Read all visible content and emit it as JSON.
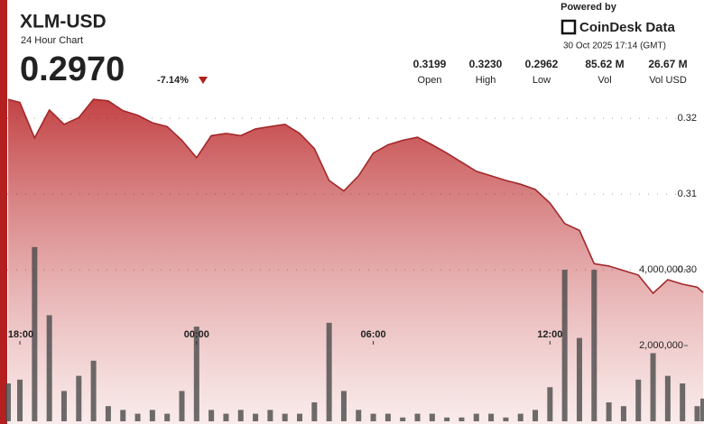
{
  "header": {
    "symbol": "XLM-USD",
    "subtitle": "24 Hour Chart",
    "price": "0.2970",
    "change": "-7.14%",
    "stats": [
      {
        "value": "0.3199",
        "label": "Open"
      },
      {
        "value": "0.3230",
        "label": "High"
      },
      {
        "value": "0.2962",
        "label": "Low"
      },
      {
        "value": "85.62 M",
        "label": "Vol"
      },
      {
        "value": "26.67 M",
        "label": "Vol USD"
      }
    ],
    "powered_by": "Powered by",
    "brand": "CoinDesk Data",
    "timestamp": "30 Oct 2025 17:14 (GMT)"
  },
  "chart_data": {
    "type": "line",
    "x": [
      17.6,
      18.0,
      18.5,
      19.0,
      19.5,
      20.0,
      20.5,
      21.0,
      21.5,
      22.0,
      22.5,
      23.0,
      23.5,
      24.0,
      24.5,
      25.0,
      25.5,
      26.0,
      26.5,
      27.0,
      27.5,
      28.0,
      28.5,
      29.0,
      29.5,
      30.0,
      30.5,
      31.0,
      31.5,
      32.0,
      32.5,
      33.0,
      33.5,
      34.0,
      34.5,
      35.0,
      35.5,
      36.0,
      36.5,
      37.0,
      37.5,
      38.0,
      38.5,
      39.0,
      39.5,
      40.0,
      40.5,
      41.0,
      41.2
    ],
    "series": [
      {
        "name": "Price",
        "color": "#a3282a",
        "values": [
          0.3225,
          0.3221,
          0.3174,
          0.3211,
          0.3192,
          0.3201,
          0.3225,
          0.3223,
          0.321,
          0.3204,
          0.3194,
          0.3189,
          0.3171,
          0.3148,
          0.3177,
          0.318,
          0.3177,
          0.3186,
          0.3189,
          0.3192,
          0.318,
          0.316,
          0.3118,
          0.3104,
          0.3124,
          0.3154,
          0.3165,
          0.3171,
          0.3175,
          0.3165,
          0.3154,
          0.3142,
          0.313,
          0.3124,
          0.3118,
          0.3113,
          0.3106,
          0.3088,
          0.3061,
          0.3052,
          0.3008,
          0.3005,
          0.2999,
          0.2993,
          0.2969,
          0.2987,
          0.2981,
          0.2977,
          0.297
        ]
      },
      {
        "name": "Volume",
        "type": "bar",
        "axis": "y2",
        "color": "#4a4a4a",
        "values": [
          1000000,
          1100000,
          4600000,
          2800000,
          800000,
          1200000,
          1600000,
          400000,
          300000,
          200000,
          300000,
          200000,
          800000,
          2500000,
          300000,
          200000,
          300000,
          200000,
          300000,
          200000,
          200000,
          500000,
          2600000,
          800000,
          300000,
          200000,
          200000,
          100000,
          200000,
          200000,
          100000,
          100000,
          200000,
          200000,
          100000,
          200000,
          300000,
          900000,
          4000000,
          2200000,
          4000000,
          500000,
          400000,
          1100000,
          1800000,
          1200000,
          1000000,
          400000,
          600000
        ]
      }
    ],
    "xlim": [
      17.57,
      41.23
    ],
    "xticks": [
      {
        "value": 18,
        "label": "18:00"
      },
      {
        "value": 24,
        "label": "00:00"
      },
      {
        "value": 30,
        "label": "06:00"
      },
      {
        "value": 36,
        "label": "12:00"
      }
    ],
    "ylim": [
      0.28,
      0.3243
    ],
    "yticks": [
      {
        "value": 0.3,
        "label": "0.30"
      },
      0.31,
      0.32
    ],
    "y2lim": [
      0,
      8860000
    ],
    "y2ticks": [
      {
        "value": 2000000,
        "label": "2,000,000"
      },
      {
        "value": 4000000,
        "label": "4,000,000"
      }
    ],
    "grid": true
  }
}
